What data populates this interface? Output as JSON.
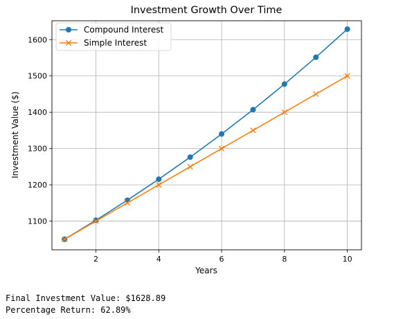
{
  "chart_data": {
    "type": "line",
    "title": "Investment Growth Over Time",
    "xlabel": "Years",
    "ylabel": "Investment Value ($)",
    "x": [
      1,
      2,
      3,
      4,
      5,
      6,
      7,
      8,
      9,
      10
    ],
    "xlim": [
      0.6,
      10.45
    ],
    "ylim": [
      1021,
      1652
    ],
    "xticks": [
      2,
      4,
      6,
      8,
      10
    ],
    "yticks": [
      1100,
      1200,
      1300,
      1400,
      1500,
      1600
    ],
    "grid": true,
    "legend_position": "top-left",
    "series": [
      {
        "name": "Compound Interest",
        "color": "#1f77b4",
        "marker": "circle",
        "values": [
          1050.0,
          1102.5,
          1157.63,
          1215.51,
          1276.28,
          1340.1,
          1407.1,
          1477.46,
          1551.33,
          1628.89
        ]
      },
      {
        "name": "Simple Interest",
        "color": "#ff7f0e",
        "marker": "x",
        "values": [
          1050,
          1100,
          1150,
          1200,
          1250,
          1300,
          1350,
          1400,
          1450,
          1500
        ]
      }
    ]
  },
  "output": {
    "final_value_line": "Final Investment Value: $1628.89",
    "percentage_line": "Percentage Return: 62.89%"
  }
}
